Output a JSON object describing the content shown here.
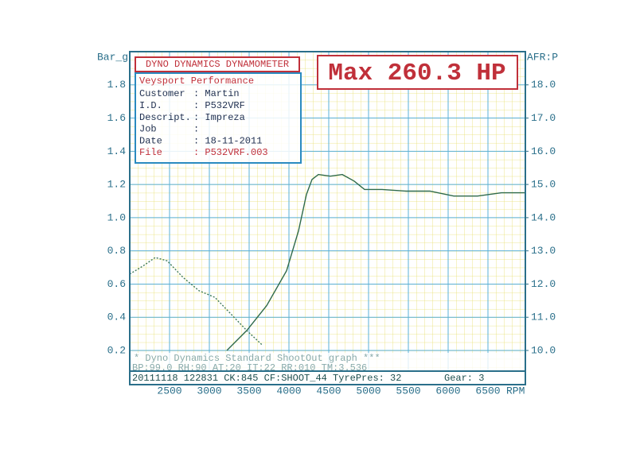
{
  "chart_data": {
    "type": "line",
    "y_label": "Bar_g",
    "y2_label": "AFR:P",
    "x_label": "RPM",
    "header": "DYNO DYNAMICS DYNAMOMETER",
    "max_label": "Max 260.3 HP",
    "company": "Veysport Performance",
    "info": [
      [
        "Customer",
        ": Martin"
      ],
      [
        "I.D.",
        ": P532VRF"
      ],
      [
        "Descript.",
        ": Impreza"
      ],
      [
        "Job",
        ":"
      ],
      [
        "Date",
        ": 18-11-2011"
      ],
      [
        "File",
        ": P532VRF.003"
      ]
    ],
    "footer": [
      "* Dyno Dynamics Standard ShootOut graph ***",
      "BP:99.0  RH:90 AT:20 IT:22  RR:010 TM:3.536",
      "20111118 122831 CK:845 CF:SHOOT_44 TyrePres: 32",
      "Gear: 3"
    ],
    "xlim": [
      2000,
      6970
    ],
    "xticks": [
      2500,
      3000,
      3500,
      4000,
      4500,
      5000,
      5500,
      6000,
      6500
    ],
    "ylim": [
      0.2,
      2.0
    ],
    "yticks": [
      0.2,
      0.4,
      0.6,
      0.8,
      {
        "value": 1,
        "label": "1.0"
      },
      1.2,
      1.4,
      1.6,
      1.8
    ],
    "y2lim": [
      10,
      19
    ],
    "y2ticks": [
      {
        "value": 10,
        "label": "10.0"
      },
      {
        "value": 11,
        "label": "11.0"
      },
      {
        "value": 12,
        "label": "12.0"
      },
      {
        "value": 13,
        "label": "13.0"
      },
      {
        "value": 14,
        "label": "14.0"
      },
      {
        "value": 15,
        "label": "15.0"
      },
      {
        "value": 16,
        "label": "16.0"
      },
      {
        "value": 17,
        "label": "17.0"
      },
      {
        "value": 18,
        "label": "18.0"
      }
    ],
    "grid": true,
    "series": [
      {
        "color": "#2f6a4a",
        "dash": false,
        "x": [
          3220,
          3470,
          3720,
          3970,
          4120,
          4220,
          4290,
          4370,
          4520,
          4670,
          4820,
          4950,
          5170,
          5470,
          5770,
          6070,
          6370,
          6670,
          6970
        ],
        "values": [
          0.2,
          0.32,
          0.47,
          0.68,
          0.92,
          1.14,
          1.23,
          1.26,
          1.25,
          1.26,
          1.22,
          1.17,
          1.17,
          1.16,
          1.16,
          1.13,
          1.13,
          1.15,
          1.15
        ]
      },
      {
        "color": "#3f7a5a",
        "dash": true,
        "x": [
          2000,
          2170,
          2320,
          2470,
          2670,
          2870,
          3070,
          3270,
          3470,
          3670
        ],
        "values": [
          0.66,
          0.71,
          0.76,
          0.74,
          0.64,
          0.56,
          0.52,
          0.42,
          0.32,
          0.23
        ]
      }
    ]
  }
}
